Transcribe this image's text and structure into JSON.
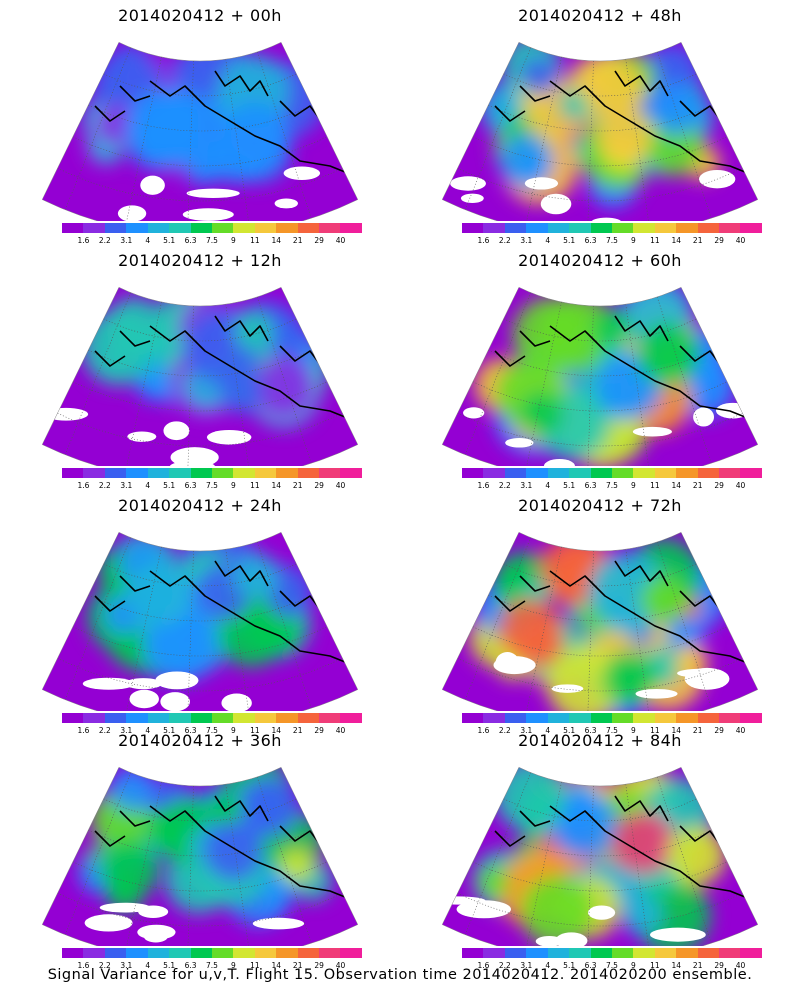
{
  "colorbar": {
    "colors": [
      "#9400d3",
      "#8a2be2",
      "#3a5ff0",
      "#1e90ff",
      "#20b2dc",
      "#20c8b4",
      "#00c850",
      "#64dc28",
      "#d2e632",
      "#f5c83c",
      "#f59628",
      "#f5643c",
      "#f03c78",
      "#f01e9b"
    ],
    "ticks": [
      "1.6",
      "2.2",
      "3.1",
      "4",
      "5.1",
      "6.3",
      "7.5",
      "9",
      "11",
      "14",
      "21",
      "29",
      "40"
    ]
  },
  "panels": [
    {
      "title": "2014020412 + 00h",
      "intensity": 0.25
    },
    {
      "title": "2014020412 + 12h",
      "intensity": 0.35
    },
    {
      "title": "2014020412 + 24h",
      "intensity": 0.42
    },
    {
      "title": "2014020412 + 36h",
      "intensity": 0.48
    },
    {
      "title": "2014020412 + 48h",
      "intensity": 0.62
    },
    {
      "title": "2014020412 + 60h",
      "intensity": 0.68
    },
    {
      "title": "2014020412 + 72h",
      "intensity": 0.74
    },
    {
      "title": "2014020412 + 84h",
      "intensity": 0.8
    }
  ],
  "footer": "Signal Variance for u,v,T. Flight 15. Observation time 2014020412. 2014020200 ensemble."
}
